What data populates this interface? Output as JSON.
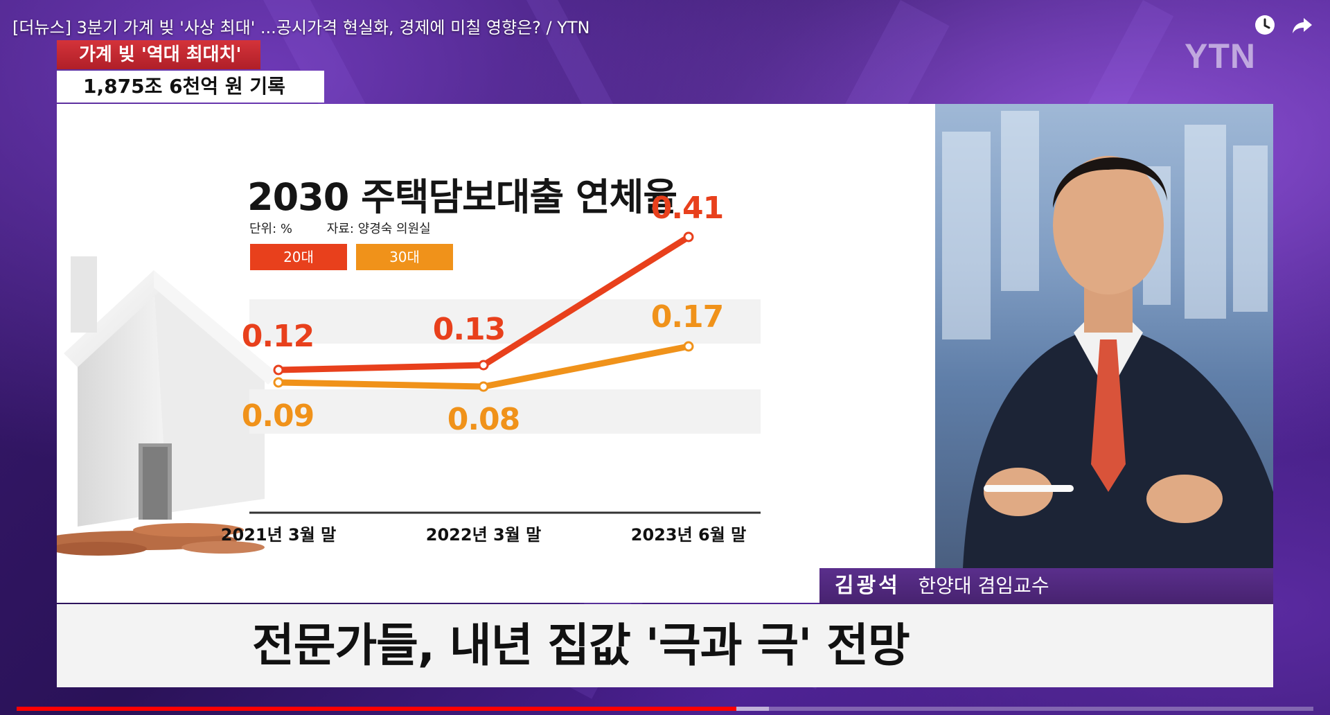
{
  "video": {
    "title": "[더뉴스] 3분기 가계 빚 '사상 최대' ...공시가격 현실화, 경제에 미칠 영향은? / YTN",
    "progress_played": 0.555,
    "progress_buffered": 0.58
  },
  "broadcast": {
    "logo": "YTN",
    "headline_tag": "가계 빚 '역대 최대치'",
    "headline_sub": "1,875조 6천억 원 기록",
    "guest_name": "김광석",
    "guest_role": "한양대 겸임교수",
    "subtitle": "전문가들, 내년 집값 '극과 극' 전망"
  },
  "icons": {
    "clock": "clock-icon",
    "share": "share-arrow-icon"
  },
  "colors": {
    "series_20s": "#e8401c",
    "series_30s": "#f0921a",
    "name_bar": "#4f2780",
    "headline_red": "#c2262e"
  },
  "chart_data": {
    "type": "line",
    "title": "2030 주택담보대출 연체율",
    "unit_label": "단위: %",
    "source_label": "자료: 양경숙 의원실",
    "categories": [
      "2021년 3월 말",
      "2022년 3월 말",
      "2023년 6월 말"
    ],
    "series": [
      {
        "name": "20대",
        "values": [
          0.12,
          0.13,
          0.41
        ],
        "labels": [
          "0.12",
          "0.13",
          "0.41"
        ]
      },
      {
        "name": "30대",
        "values": [
          0.09,
          0.08,
          0.17
        ],
        "labels": [
          "0.09",
          "0.08",
          "0.17"
        ]
      }
    ],
    "ylim": [
      0,
      0.45
    ],
    "grid": "horizontal bands"
  }
}
